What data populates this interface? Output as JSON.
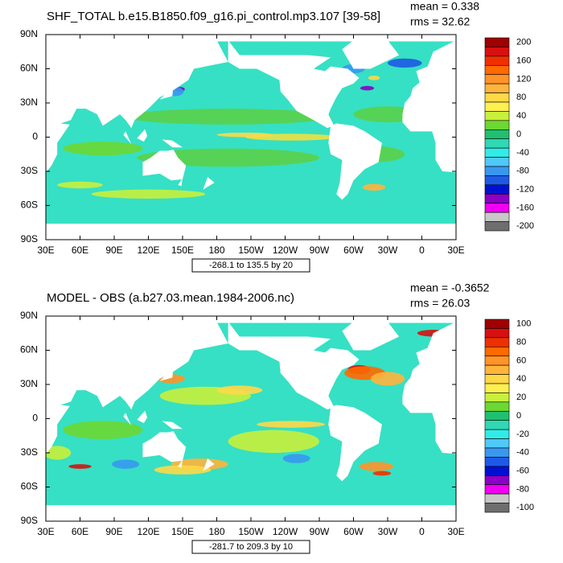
{
  "axes": {
    "lat_labels": [
      "90N",
      "60N",
      "30N",
      "0",
      "30S",
      "60S",
      "90S"
    ],
    "lon_labels": [
      "30E",
      "60E",
      "90E",
      "120E",
      "150E",
      "180",
      "150W",
      "120W",
      "90W",
      "60W",
      "30W",
      "0",
      "30E"
    ]
  },
  "panels": [
    {
      "title": "SHF_TOTAL b.e15.B1850.f09_g16.pi_control.mp3.107 [39-58]",
      "mean": "mean = 0.338",
      "rms": "rms = 32.62",
      "contour_info": "-268.1 to 135.5 by 20",
      "colorbar": {
        "labels": [
          200,
          160,
          120,
          80,
          40,
          0,
          -40,
          -80,
          -120,
          -160,
          -200
        ],
        "colors": [
          "#a00000",
          "#d81010",
          "#f03000",
          "#ff6a00",
          "#ff9428",
          "#ffb43c",
          "#ffd848",
          "#fff050",
          "#c8f03c",
          "#6cd832",
          "#20c070",
          "#30d8b4",
          "#30ece8",
          "#50c8f8",
          "#3898f0",
          "#1e5ae6",
          "#0010d0",
          "#8c00c8",
          "#f000f0",
          "#c8c8c8",
          "#6e6e6e"
        ]
      }
    },
    {
      "title": "MODEL - OBS (a.b27.03.mean.1984-2006.nc)",
      "mean": "mean = -0.3652",
      "rms": "rms = 26.03",
      "contour_info": "-281.7 to 209.3 by 10",
      "colorbar": {
        "labels": [
          100,
          80,
          60,
          40,
          20,
          0,
          -20,
          -40,
          -60,
          -80,
          -100
        ],
        "colors": [
          "#a00000",
          "#d81010",
          "#f03000",
          "#ff6a00",
          "#ff9428",
          "#ffb43c",
          "#ffd848",
          "#fff050",
          "#c8f03c",
          "#6cd832",
          "#20c070",
          "#30d8b4",
          "#30ece8",
          "#50c8f8",
          "#3898f0",
          "#1e5ae6",
          "#0010d0",
          "#8c00c8",
          "#f000f0",
          "#c8c8c8",
          "#6e6e6e"
        ]
      }
    }
  ]
}
